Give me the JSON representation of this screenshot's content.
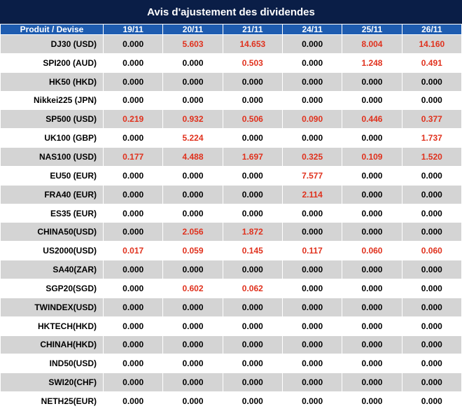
{
  "title": "Avis d'ajustement des dividendes",
  "colors": {
    "title_bg": "#0a1e47",
    "header_bg": "#1e5cb0",
    "row_alt_bg": "#d4d4d4",
    "row_bg": "#ffffff",
    "negative_value": "#e0311d",
    "text": "#000000"
  },
  "table": {
    "headers": [
      "Produit / Devise",
      "19/11",
      "20/11",
      "21/11",
      "24/11",
      "25/11",
      "26/11"
    ],
    "rows": [
      {
        "product": "DJ30 (USD)",
        "values": [
          "0.000",
          "5.603",
          "14.653",
          "0.000",
          "8.004",
          "14.160"
        ],
        "red": [
          false,
          true,
          true,
          false,
          true,
          true
        ]
      },
      {
        "product": "SPI200 (AUD)",
        "values": [
          "0.000",
          "0.000",
          "0.503",
          "0.000",
          "1.248",
          "0.491"
        ],
        "red": [
          false,
          false,
          true,
          false,
          true,
          true
        ]
      },
      {
        "product": "HK50 (HKD)",
        "values": [
          "0.000",
          "0.000",
          "0.000",
          "0.000",
          "0.000",
          "0.000"
        ],
        "red": [
          false,
          false,
          false,
          false,
          false,
          false
        ]
      },
      {
        "product": "Nikkei225 (JPN)",
        "values": [
          "0.000",
          "0.000",
          "0.000",
          "0.000",
          "0.000",
          "0.000"
        ],
        "red": [
          false,
          false,
          false,
          false,
          false,
          false
        ]
      },
      {
        "product": "SP500 (USD)",
        "values": [
          "0.219",
          "0.932",
          "0.506",
          "0.090",
          "0.446",
          "0.377"
        ],
        "red": [
          true,
          true,
          true,
          true,
          true,
          true
        ]
      },
      {
        "product": "UK100 (GBP)",
        "values": [
          "0.000",
          "5.224",
          "0.000",
          "0.000",
          "0.000",
          "1.737"
        ],
        "red": [
          false,
          true,
          false,
          false,
          false,
          true
        ]
      },
      {
        "product": "NAS100 (USD)",
        "values": [
          "0.177",
          "4.488",
          "1.697",
          "0.325",
          "0.109",
          "1.520"
        ],
        "red": [
          true,
          true,
          true,
          true,
          true,
          true
        ]
      },
      {
        "product": "EU50 (EUR)",
        "values": [
          "0.000",
          "0.000",
          "0.000",
          "7.577",
          "0.000",
          "0.000"
        ],
        "red": [
          false,
          false,
          false,
          true,
          false,
          false
        ]
      },
      {
        "product": "FRA40 (EUR)",
        "values": [
          "0.000",
          "0.000",
          "0.000",
          "2.114",
          "0.000",
          "0.000"
        ],
        "red": [
          false,
          false,
          false,
          true,
          false,
          false
        ]
      },
      {
        "product": "ES35 (EUR)",
        "values": [
          "0.000",
          "0.000",
          "0.000",
          "0.000",
          "0.000",
          "0.000"
        ],
        "red": [
          false,
          false,
          false,
          false,
          false,
          false
        ]
      },
      {
        "product": "CHINA50(USD)",
        "values": [
          "0.000",
          "2.056",
          "1.872",
          "0.000",
          "0.000",
          "0.000"
        ],
        "red": [
          false,
          true,
          true,
          false,
          false,
          false
        ]
      },
      {
        "product": "US2000(USD)",
        "values": [
          "0.017",
          "0.059",
          "0.145",
          "0.117",
          "0.060",
          "0.060"
        ],
        "red": [
          true,
          true,
          true,
          true,
          true,
          true
        ]
      },
      {
        "product": "SA40(ZAR)",
        "values": [
          "0.000",
          "0.000",
          "0.000",
          "0.000",
          "0.000",
          "0.000"
        ],
        "red": [
          false,
          false,
          false,
          false,
          false,
          false
        ]
      },
      {
        "product": "SGP20(SGD)",
        "values": [
          "0.000",
          "0.602",
          "0.062",
          "0.000",
          "0.000",
          "0.000"
        ],
        "red": [
          false,
          true,
          true,
          false,
          false,
          false
        ]
      },
      {
        "product": "TWINDEX(USD)",
        "values": [
          "0.000",
          "0.000",
          "0.000",
          "0.000",
          "0.000",
          "0.000"
        ],
        "red": [
          false,
          false,
          false,
          false,
          false,
          false
        ]
      },
      {
        "product": "HKTECH(HKD)",
        "values": [
          "0.000",
          "0.000",
          "0.000",
          "0.000",
          "0.000",
          "0.000"
        ],
        "red": [
          false,
          false,
          false,
          false,
          false,
          false
        ]
      },
      {
        "product": "CHINAH(HKD)",
        "values": [
          "0.000",
          "0.000",
          "0.000",
          "0.000",
          "0.000",
          "0.000"
        ],
        "red": [
          false,
          false,
          false,
          false,
          false,
          false
        ]
      },
      {
        "product": "IND50(USD)",
        "values": [
          "0.000",
          "0.000",
          "0.000",
          "0.000",
          "0.000",
          "0.000"
        ],
        "red": [
          false,
          false,
          false,
          false,
          false,
          false
        ]
      },
      {
        "product": "SWI20(CHF)",
        "values": [
          "0.000",
          "0.000",
          "0.000",
          "0.000",
          "0.000",
          "0.000"
        ],
        "red": [
          false,
          false,
          false,
          false,
          false,
          false
        ]
      },
      {
        "product": "NETH25(EUR)",
        "values": [
          "0.000",
          "0.000",
          "0.000",
          "0.000",
          "0.000",
          "0.000"
        ],
        "red": [
          false,
          false,
          false,
          false,
          false,
          false
        ]
      }
    ]
  }
}
